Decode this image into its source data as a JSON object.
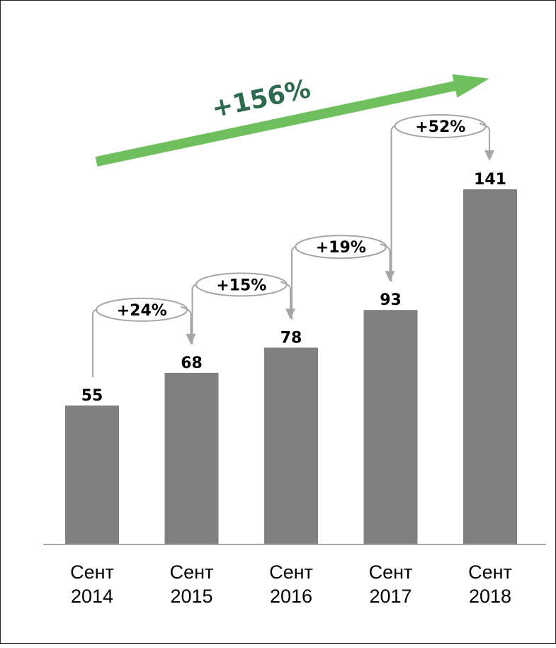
{
  "chart_data": {
    "type": "bar",
    "categories": [
      [
        "Сент",
        "2014"
      ],
      [
        "Сент",
        "2015"
      ],
      [
        "Сент",
        "2016"
      ],
      [
        "Сент",
        "2017"
      ],
      [
        "Сент",
        "2018"
      ]
    ],
    "values": [
      55,
      68,
      78,
      93,
      141
    ],
    "value_labels": [
      "55",
      "68",
      "78",
      "93",
      "141"
    ],
    "growth_labels": [
      "+24%",
      "+15%",
      "+19%",
      "+52%"
    ],
    "total_growth_label": "+156%",
    "ylim": [
      0,
      141
    ],
    "grid": false,
    "legend": "none"
  },
  "colors": {
    "bar": "#808080",
    "connector": "#a6a6a6",
    "total_arrow": "#70bf5f",
    "total_text": "#2e6b4e",
    "axis": "#a6a6a6"
  }
}
